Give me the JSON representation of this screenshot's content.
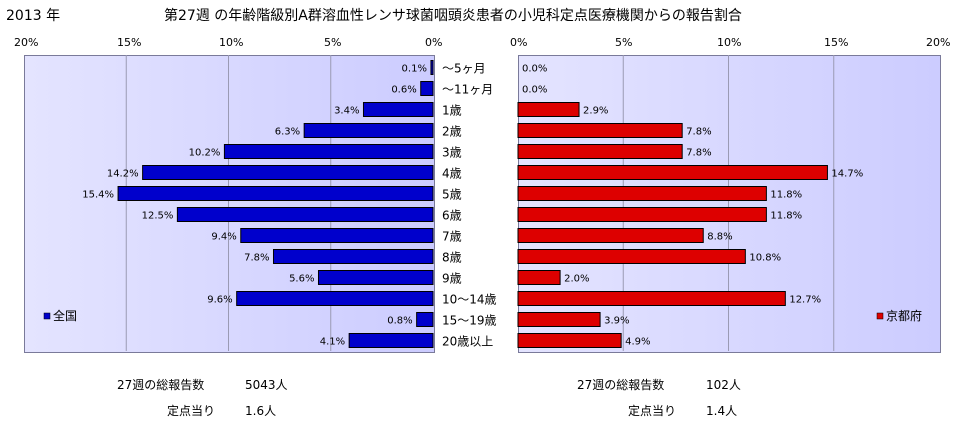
{
  "header": {
    "year": "2013 年",
    "title": "第27週 の年齢階級別A群溶血性レンサ球菌咽頭炎患者の小児科定点医療機関からの報告割合"
  },
  "chart_data": [
    {
      "type": "bar",
      "orientation": "horizontal",
      "direction": "right-to-left",
      "series": [
        {
          "name": "全国",
          "color": "#0000cc",
          "values": [
            0.1,
            0.6,
            3.4,
            6.3,
            10.2,
            14.2,
            15.4,
            12.5,
            9.4,
            7.8,
            5.6,
            9.6,
            0.8,
            4.1
          ],
          "labels": [
            "0.1%",
            "0.6%",
            "3.4%",
            "6.3%",
            "10.2%",
            "14.2%",
            "15.4%",
            "12.5%",
            "9.4%",
            "7.8%",
            "5.6%",
            "9.6%",
            "0.8%",
            "4.1%"
          ]
        }
      ],
      "xlim": [
        0,
        20
      ],
      "xticks": [
        "20%",
        "15%",
        "10%",
        "5%",
        "0%"
      ],
      "grid": true,
      "legend_position": "bottom-left"
    },
    {
      "type": "bar",
      "orientation": "horizontal",
      "direction": "left-to-right",
      "series": [
        {
          "name": "京都府",
          "color": "#dd0000",
          "values": [
            0.0,
            0.0,
            2.9,
            7.8,
            7.8,
            14.7,
            11.8,
            11.8,
            8.8,
            10.8,
            2.0,
            12.7,
            3.9,
            4.9
          ],
          "labels": [
            "0.0%",
            "0.0%",
            "2.9%",
            "7.8%",
            "7.8%",
            "14.7%",
            "11.8%",
            "11.8%",
            "8.8%",
            "10.8%",
            "2.0%",
            "12.7%",
            "3.9%",
            "4.9%"
          ]
        }
      ],
      "xlim": [
        0,
        20
      ],
      "xticks": [
        "0%",
        "5%",
        "10%",
        "15%",
        "20%"
      ],
      "grid": true,
      "legend_position": "bottom-right"
    }
  ],
  "categories": [
    "～5ヶ月",
    "～11ヶ月",
    "1歳",
    "2歳",
    "3歳",
    "4歳",
    "5歳",
    "6歳",
    "7歳",
    "8歳",
    "9歳",
    "10～14歳",
    "15～19歳",
    "20歳以上"
  ],
  "stats": {
    "national": {
      "total_label": "27週の総報告数",
      "total_value": "5043人",
      "per_label": "定点当り",
      "per_value": "1.6人"
    },
    "kyoto": {
      "total_label": "27週の総報告数",
      "total_value": "102人",
      "per_label": "定点当り",
      "per_value": "1.4人"
    }
  }
}
